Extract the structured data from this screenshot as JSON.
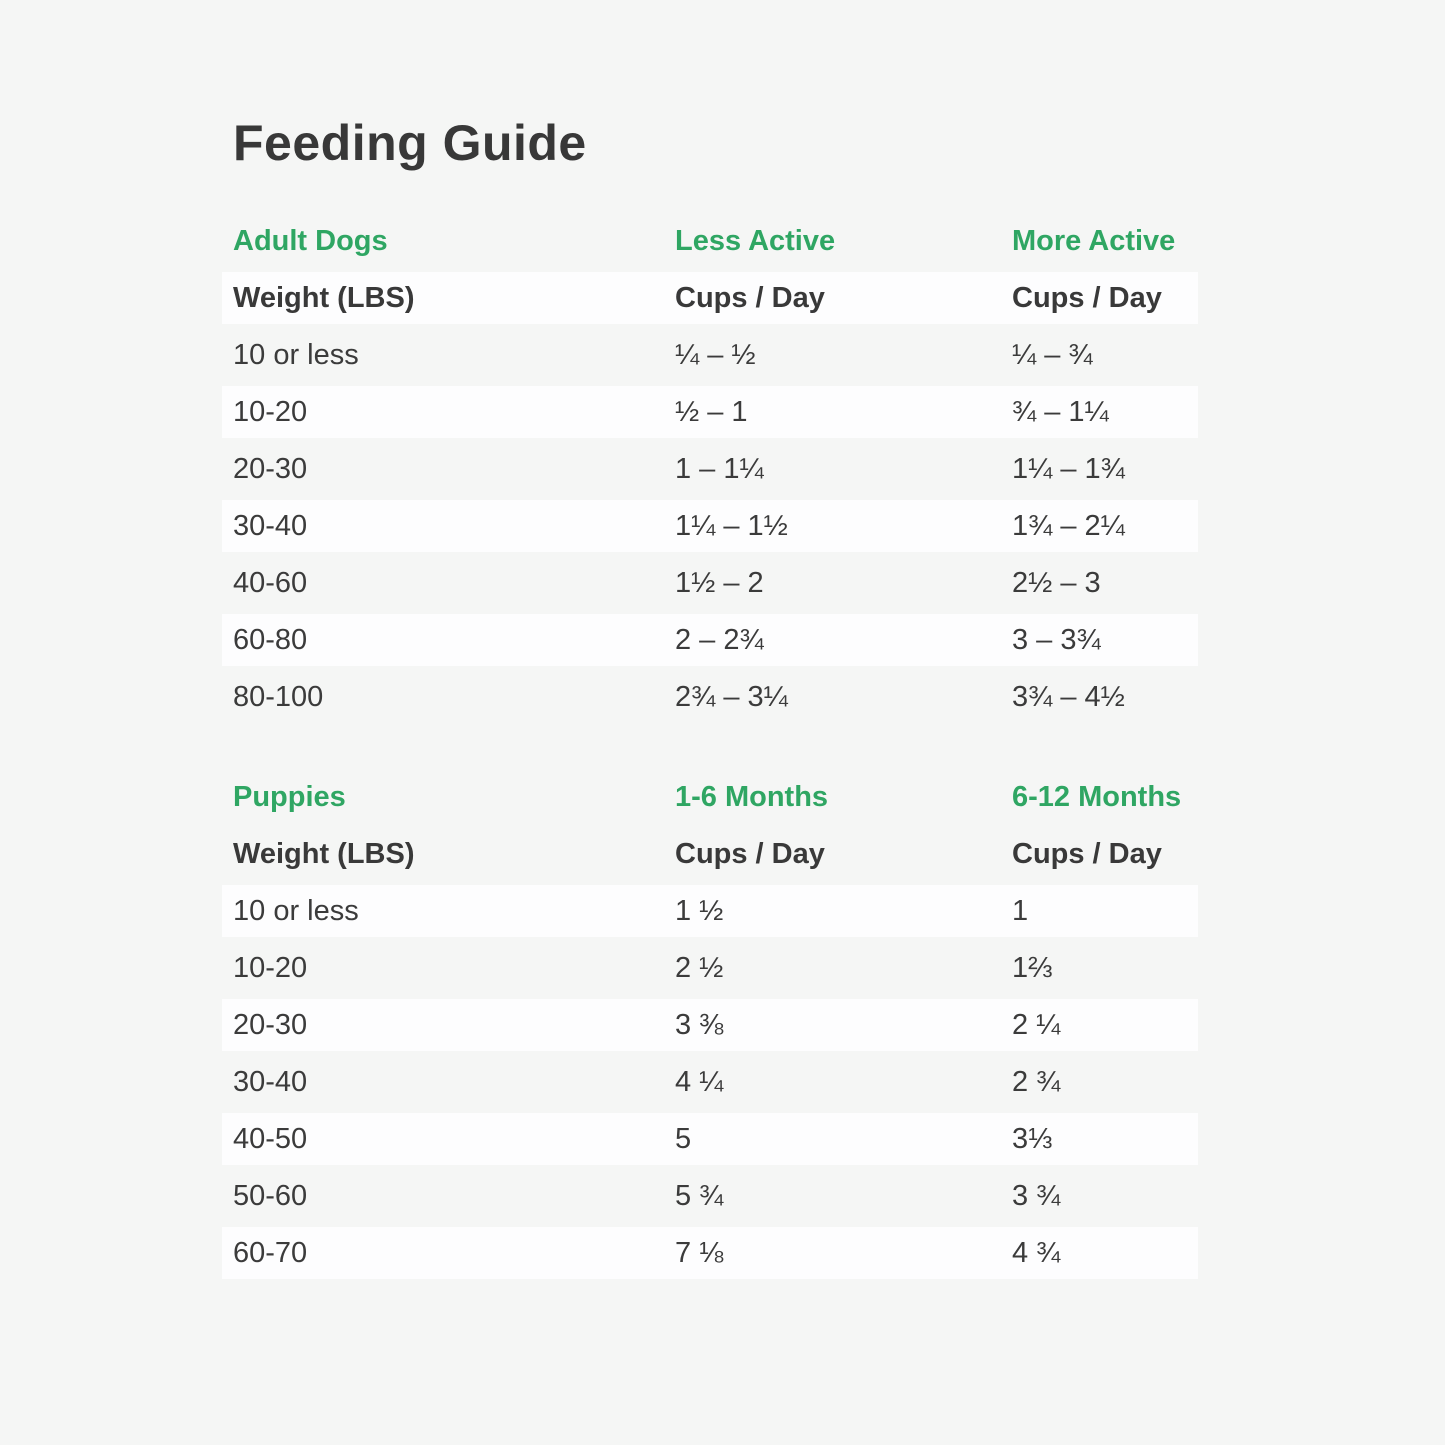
{
  "page": {
    "title": "Feeding Guide"
  },
  "colors": {
    "background": "#f5f6f5",
    "row_highlight": "#fdfdfe",
    "text_dark": "#3b3b3b",
    "section_green": "#2fa663"
  },
  "tables": [
    {
      "section": "Adult Dogs",
      "period_headers": [
        "Less Active",
        "More Active"
      ],
      "column_headers": [
        "Weight (LBS)",
        "Cups / Day",
        "Cups / Day"
      ],
      "rows": [
        [
          "10 or less",
          "¼ – ½",
          "¼ – ¾"
        ],
        [
          "10-20",
          "½ – 1",
          "¾ – 1¼"
        ],
        [
          "20-30",
          "1 – 1¼",
          "1¼ – 1¾"
        ],
        [
          "30-40",
          "1¼ – 1½",
          "1¾ – 2¼"
        ],
        [
          "40-60",
          "1½ – 2",
          "2½ – 3"
        ],
        [
          "60-80",
          "2 – 2¾",
          "3 – 3¾"
        ],
        [
          "80-100",
          "2¾ – 3¼",
          "3¾ – 4½"
        ]
      ]
    },
    {
      "section": "Puppies",
      "period_headers": [
        "1-6 Months",
        "6-12 Months"
      ],
      "column_headers": [
        "Weight (LBS)",
        "Cups / Day",
        "Cups / Day"
      ],
      "rows": [
        [
          "10 or less",
          "1 ½",
          "1"
        ],
        [
          "10-20",
          "2 ½",
          "1⅔"
        ],
        [
          "20-30",
          "3 ⅜",
          "2 ¼"
        ],
        [
          "30-40",
          "4 ¼",
          "2 ¾"
        ],
        [
          "40-50",
          "5",
          "3⅓"
        ],
        [
          "50-60",
          "5 ¾",
          "3 ¾"
        ],
        [
          "60-70",
          "7 ⅛",
          "4 ¾"
        ]
      ]
    }
  ],
  "chart_data": [
    {
      "type": "table",
      "title": "Feeding Guide — Adult Dogs",
      "columns": [
        "Weight (LBS)",
        "Less Active Cups / Day",
        "More Active Cups / Day"
      ],
      "rows": [
        [
          "10 or less",
          "1/4 - 1/2",
          "1/4 - 3/4"
        ],
        [
          "10-20",
          "1/2 - 1",
          "3/4 - 1 1/4"
        ],
        [
          "20-30",
          "1 - 1 1/4",
          "1 1/4 - 1 3/4"
        ],
        [
          "30-40",
          "1 1/4 - 1 1/2",
          "1 3/4 - 2 1/4"
        ],
        [
          "40-60",
          "1 1/2 - 2",
          "2 1/2 - 3"
        ],
        [
          "60-80",
          "2 - 2 3/4",
          "3 - 3 3/4"
        ],
        [
          "80-100",
          "2 3/4 - 3 1/4",
          "3 3/4 - 4 1/2"
        ]
      ]
    },
    {
      "type": "table",
      "title": "Feeding Guide — Puppies",
      "columns": [
        "Weight (LBS)",
        "1-6 Months Cups / Day",
        "6-12 Months Cups / Day"
      ],
      "rows": [
        [
          "10 or less",
          "1 1/2",
          "1"
        ],
        [
          "10-20",
          "2 1/2",
          "1 2/3"
        ],
        [
          "20-30",
          "3 3/8",
          "2 1/4"
        ],
        [
          "30-40",
          "4 1/4",
          "2 3/4"
        ],
        [
          "40-50",
          "5",
          "3 1/3"
        ],
        [
          "50-60",
          "5 3/4",
          "3 3/4"
        ],
        [
          "60-70",
          "7 1/8",
          "4 3/4"
        ]
      ]
    }
  ]
}
